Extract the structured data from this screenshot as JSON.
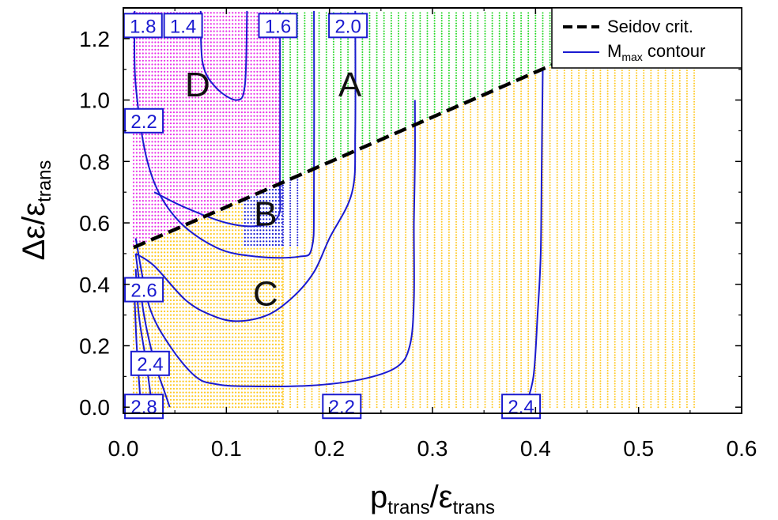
{
  "chart_data": {
    "type": "scatter",
    "title": "",
    "xlabel": {
      "main": "p",
      "sub": "trans",
      "sep": "/",
      "main2": "ε",
      "sub2": "trans"
    },
    "ylabel": {
      "main": "Δε/",
      "main2": "ε",
      "sub2": "trans"
    },
    "xlim": [
      0,
      0.6
    ],
    "ylim": [
      -0.02,
      1.3
    ],
    "xticks": [
      "0.0",
      "0.1",
      "0.2",
      "0.3",
      "0.4",
      "0.5",
      "0.6"
    ],
    "yticks": [
      "0.0",
      "0.2",
      "0.4",
      "0.6",
      "0.8",
      "1.0",
      "1.2"
    ],
    "legend": {
      "placement": "top-right",
      "entries": [
        {
          "label": "Seidov crit.",
          "style": "dashed",
          "color": "#000000"
        },
        {
          "label": "M",
          "sub": "max",
          "suffix": " contour",
          "style": "solid",
          "color": "#1a1ad0"
        }
      ]
    },
    "seidov_line": {
      "p0": [
        0.01,
        0.52
      ],
      "p1": [
        0.42,
        1.12
      ]
    },
    "regions": [
      {
        "id": "A",
        "label": "A",
        "color": "#22d622",
        "at": [
          0.22,
          1.05
        ]
      },
      {
        "id": "B",
        "label": "B",
        "color": "#1a1ad0",
        "at": [
          0.138,
          0.63
        ]
      },
      {
        "id": "C",
        "label": "C",
        "color": "#ffc820",
        "at": [
          0.138,
          0.37
        ]
      },
      {
        "id": "D",
        "label": "D",
        "color": "#e830e8",
        "at": [
          0.072,
          1.05
        ]
      }
    ],
    "contours": [
      {
        "level": "1.4",
        "points": [
          [
            0.075,
            1.29
          ],
          [
            0.077,
            1.12
          ],
          [
            0.09,
            1.04
          ],
          [
            0.11,
            1.0
          ],
          [
            0.118,
            1.05
          ],
          [
            0.12,
            1.29
          ]
        ]
      },
      {
        "level": "1.6",
        "points": [
          [
            0.03,
            0.7
          ],
          [
            0.06,
            0.65
          ],
          [
            0.1,
            0.6
          ],
          [
            0.13,
            0.59
          ],
          [
            0.15,
            0.62
          ],
          [
            0.152,
            0.75
          ],
          [
            0.152,
            1.29
          ]
        ]
      },
      {
        "level": "1.8",
        "points": [
          [
            0.011,
            1.29
          ],
          [
            0.012,
            1.05
          ],
          [
            0.025,
            0.78
          ],
          [
            0.05,
            0.62
          ],
          [
            0.09,
            0.52
          ],
          [
            0.13,
            0.49
          ],
          [
            0.17,
            0.49
          ],
          [
            0.183,
            0.52
          ],
          [
            0.185,
            0.7
          ],
          [
            0.185,
            1.29
          ]
        ]
      },
      {
        "level": "2.0",
        "points": [
          [
            0.012,
            0.5
          ],
          [
            0.03,
            0.46
          ],
          [
            0.06,
            0.35
          ],
          [
            0.085,
            0.3
          ],
          [
            0.11,
            0.28
          ],
          [
            0.14,
            0.3
          ],
          [
            0.165,
            0.36
          ],
          [
            0.185,
            0.44
          ],
          [
            0.2,
            0.55
          ],
          [
            0.222,
            0.7
          ],
          [
            0.225,
            0.9
          ],
          [
            0.225,
            1.29
          ]
        ]
      },
      {
        "level": "2.2",
        "points": [
          [
            0.012,
            0.55
          ],
          [
            0.025,
            0.33
          ],
          [
            0.045,
            0.2
          ],
          [
            0.07,
            0.1
          ],
          [
            0.09,
            0.075
          ],
          [
            0.12,
            0.068
          ],
          [
            0.18,
            0.07
          ],
          [
            0.23,
            0.09
          ],
          [
            0.265,
            0.13
          ],
          [
            0.278,
            0.2
          ],
          [
            0.282,
            0.35
          ],
          [
            0.282,
            0.6
          ],
          [
            0.283,
            0.8
          ],
          [
            0.283,
            1.0
          ]
        ]
      },
      {
        "level": "2.4",
        "points": [
          [
            0.012,
            0.5
          ],
          [
            0.02,
            0.3
          ],
          [
            0.03,
            0.15
          ],
          [
            0.04,
            0.05
          ],
          [
            0.045,
            0.0
          ]
        ]
      },
      {
        "level": "2.4",
        "points": [
          [
            0.39,
            0.0
          ],
          [
            0.398,
            0.1
          ],
          [
            0.402,
            0.3
          ],
          [
            0.405,
            0.5
          ],
          [
            0.406,
            0.8
          ],
          [
            0.407,
            1.1
          ]
        ]
      },
      {
        "level": "2.6",
        "points": [
          [
            0.012,
            0.45
          ],
          [
            0.015,
            0.3
          ],
          [
            0.022,
            0.15
          ],
          [
            0.028,
            0.0
          ]
        ]
      },
      {
        "level": "2.8",
        "points": [
          [
            0.011,
            0.35
          ],
          [
            0.013,
            0.2
          ],
          [
            0.017,
            0.0
          ]
        ]
      }
    ],
    "contour_labels": [
      {
        "text": "1.8",
        "at": [
          0.019,
          1.24
        ]
      },
      {
        "text": "1.4",
        "at": [
          0.058,
          1.24
        ]
      },
      {
        "text": "1.6",
        "at": [
          0.15,
          1.24
        ]
      },
      {
        "text": "2.0",
        "at": [
          0.218,
          1.24
        ]
      },
      {
        "text": "2.2",
        "at": [
          0.02,
          0.93
        ]
      },
      {
        "text": "2.6",
        "at": [
          0.02,
          0.38
        ]
      },
      {
        "text": "2.4",
        "at": [
          0.026,
          0.14
        ]
      },
      {
        "text": "2.8",
        "at": [
          0.02,
          0.0
        ]
      },
      {
        "text": "2.2",
        "at": [
          0.212,
          0.0
        ]
      },
      {
        "text": "2.4",
        "at": [
          0.386,
          0.0
        ]
      }
    ]
  }
}
